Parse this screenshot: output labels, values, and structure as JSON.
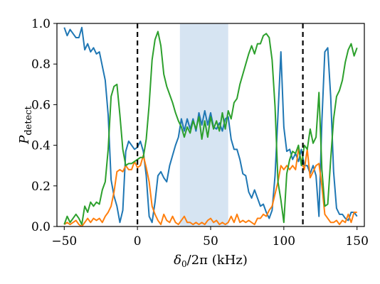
{
  "chart_data": {
    "type": "line",
    "xlabel": "δ0/2π (kHz)",
    "ylabel": "Pdetect",
    "xlim": [
      -55,
      155
    ],
    "ylim": [
      0,
      1
    ],
    "x_ticks": [
      -50,
      0,
      50,
      100,
      150
    ],
    "y_ticks": [
      0.0,
      0.2,
      0.4,
      0.6,
      0.8,
      1.0
    ],
    "x_tick_labels": [
      "−50",
      "0",
      "50",
      "100",
      "150"
    ],
    "y_tick_labels": [
      "0.0",
      "0.2",
      "0.4",
      "0.6",
      "0.8",
      "1.0"
    ],
    "grid": false,
    "shaded_region": {
      "x_start": 29,
      "x_end": 62,
      "color": "#d6e4f2"
    },
    "vertical_lines": [
      0,
      113
    ],
    "series": [
      {
        "color": "#1f77b4",
        "points": [
          [
            -50,
            0.98
          ],
          [
            -48,
            0.94
          ],
          [
            -46,
            0.97
          ],
          [
            -44,
            0.95
          ],
          [
            -42,
            0.93
          ],
          [
            -40,
            0.93
          ],
          [
            -38,
            0.98
          ],
          [
            -36,
            0.87
          ],
          [
            -34,
            0.9
          ],
          [
            -32,
            0.86
          ],
          [
            -30,
            0.88
          ],
          [
            -28,
            0.85
          ],
          [
            -26,
            0.86
          ],
          [
            -24,
            0.79
          ],
          [
            -22,
            0.72
          ],
          [
            -20,
            0.55
          ],
          [
            -18,
            0.23
          ],
          [
            -16,
            0.15
          ],
          [
            -14,
            0.1
          ],
          [
            -12,
            0.02
          ],
          [
            -10,
            0.08
          ],
          [
            -8,
            0.37
          ],
          [
            -6,
            0.42
          ],
          [
            -4,
            0.4
          ],
          [
            -2,
            0.38
          ],
          [
            0,
            0.39
          ],
          [
            2,
            0.42
          ],
          [
            4,
            0.37
          ],
          [
            6,
            0.25
          ],
          [
            8,
            0.05
          ],
          [
            10,
            0.02
          ],
          [
            12,
            0.12
          ],
          [
            14,
            0.25
          ],
          [
            16,
            0.27
          ],
          [
            18,
            0.24
          ],
          [
            20,
            0.22
          ],
          [
            22,
            0.3
          ],
          [
            24,
            0.35
          ],
          [
            26,
            0.4
          ],
          [
            28,
            0.44
          ],
          [
            30,
            0.53
          ],
          [
            32,
            0.47
          ],
          [
            34,
            0.53
          ],
          [
            36,
            0.48
          ],
          [
            38,
            0.53
          ],
          [
            40,
            0.47
          ],
          [
            42,
            0.56
          ],
          [
            44,
            0.5
          ],
          [
            46,
            0.57
          ],
          [
            48,
            0.5
          ],
          [
            50,
            0.56
          ],
          [
            52,
            0.49
          ],
          [
            54,
            0.48
          ],
          [
            56,
            0.51
          ],
          [
            58,
            0.47
          ],
          [
            60,
            0.53
          ],
          [
            62,
            0.54
          ],
          [
            64,
            0.43
          ],
          [
            66,
            0.38
          ],
          [
            68,
            0.38
          ],
          [
            70,
            0.33
          ],
          [
            72,
            0.26
          ],
          [
            74,
            0.25
          ],
          [
            76,
            0.17
          ],
          [
            78,
            0.14
          ],
          [
            80,
            0.18
          ],
          [
            82,
            0.14
          ],
          [
            84,
            0.1
          ],
          [
            86,
            0.11
          ],
          [
            88,
            0.07
          ],
          [
            90,
            0.04
          ],
          [
            92,
            0.08
          ],
          [
            94,
            0.25
          ],
          [
            96,
            0.55
          ],
          [
            98,
            0.86
          ],
          [
            100,
            0.49
          ],
          [
            102,
            0.37
          ],
          [
            104,
            0.38
          ],
          [
            106,
            0.33
          ],
          [
            108,
            0.36
          ],
          [
            110,
            0.32
          ],
          [
            112,
            0.38
          ],
          [
            114,
            0.3
          ],
          [
            116,
            0.3
          ],
          [
            118,
            0.26
          ],
          [
            120,
            0.3
          ],
          [
            122,
            0.25
          ],
          [
            124,
            0.05
          ],
          [
            126,
            0.52
          ],
          [
            128,
            0.86
          ],
          [
            130,
            0.88
          ],
          [
            132,
            0.64
          ],
          [
            134,
            0.27
          ],
          [
            136,
            0.09
          ],
          [
            138,
            0.06
          ],
          [
            140,
            0.06
          ],
          [
            142,
            0.04
          ],
          [
            144,
            0.03
          ],
          [
            146,
            0.07
          ],
          [
            148,
            0.07
          ],
          [
            150,
            0.05
          ]
        ]
      },
      {
        "color": "#ff7f0e",
        "points": [
          [
            -50,
            0.01
          ],
          [
            -48,
            0.02
          ],
          [
            -46,
            0.01
          ],
          [
            -44,
            0.02
          ],
          [
            -42,
            0.03
          ],
          [
            -40,
            0.01
          ],
          [
            -38,
            0.0
          ],
          [
            -36,
            0.02
          ],
          [
            -34,
            0.04
          ],
          [
            -32,
            0.02
          ],
          [
            -30,
            0.04
          ],
          [
            -28,
            0.03
          ],
          [
            -26,
            0.04
          ],
          [
            -24,
            0.02
          ],
          [
            -22,
            0.05
          ],
          [
            -20,
            0.07
          ],
          [
            -18,
            0.1
          ],
          [
            -16,
            0.17
          ],
          [
            -14,
            0.27
          ],
          [
            -12,
            0.28
          ],
          [
            -10,
            0.27
          ],
          [
            -8,
            0.3
          ],
          [
            -6,
            0.28
          ],
          [
            -4,
            0.28
          ],
          [
            -2,
            0.32
          ],
          [
            0,
            0.29
          ],
          [
            2,
            0.3
          ],
          [
            4,
            0.35
          ],
          [
            6,
            0.29
          ],
          [
            8,
            0.22
          ],
          [
            10,
            0.1
          ],
          [
            12,
            0.06
          ],
          [
            14,
            0.03
          ],
          [
            16,
            0.01
          ],
          [
            18,
            0.06
          ],
          [
            20,
            0.03
          ],
          [
            22,
            0.02
          ],
          [
            24,
            0.05
          ],
          [
            26,
            0.02
          ],
          [
            28,
            0.01
          ],
          [
            30,
            0.03
          ],
          [
            32,
            0.05
          ],
          [
            34,
            0.02
          ],
          [
            36,
            0.02
          ],
          [
            38,
            0.01
          ],
          [
            40,
            0.02
          ],
          [
            42,
            0.01
          ],
          [
            44,
            0.02
          ],
          [
            46,
            0.01
          ],
          [
            48,
            0.03
          ],
          [
            50,
            0.04
          ],
          [
            52,
            0.02
          ],
          [
            54,
            0.03
          ],
          [
            56,
            0.01
          ],
          [
            58,
            0.02
          ],
          [
            60,
            0.01
          ],
          [
            62,
            0.02
          ],
          [
            64,
            0.05
          ],
          [
            66,
            0.02
          ],
          [
            68,
            0.06
          ],
          [
            70,
            0.02
          ],
          [
            72,
            0.03
          ],
          [
            74,
            0.02
          ],
          [
            76,
            0.03
          ],
          [
            78,
            0.02
          ],
          [
            80,
            0.01
          ],
          [
            82,
            0.04
          ],
          [
            84,
            0.04
          ],
          [
            86,
            0.06
          ],
          [
            88,
            0.05
          ],
          [
            90,
            0.08
          ],
          [
            92,
            0.1
          ],
          [
            94,
            0.16
          ],
          [
            96,
            0.22
          ],
          [
            98,
            0.3
          ],
          [
            100,
            0.28
          ],
          [
            102,
            0.3
          ],
          [
            104,
            0.28
          ],
          [
            106,
            0.3
          ],
          [
            108,
            0.28
          ],
          [
            110,
            0.38
          ],
          [
            112,
            0.32
          ],
          [
            114,
            0.28
          ],
          [
            116,
            0.38
          ],
          [
            118,
            0.24
          ],
          [
            120,
            0.27
          ],
          [
            122,
            0.3
          ],
          [
            124,
            0.31
          ],
          [
            126,
            0.2
          ],
          [
            128,
            0.06
          ],
          [
            130,
            0.04
          ],
          [
            132,
            0.02
          ],
          [
            134,
            0.02
          ],
          [
            136,
            0.03
          ],
          [
            138,
            0.01
          ],
          [
            140,
            0.03
          ],
          [
            142,
            0.02
          ],
          [
            144,
            0.06
          ],
          [
            146,
            0.02
          ],
          [
            148,
            0.07
          ],
          [
            150,
            0.07
          ]
        ]
      },
      {
        "color": "#2ca02c",
        "points": [
          [
            -50,
            0.01
          ],
          [
            -48,
            0.05
          ],
          [
            -46,
            0.02
          ],
          [
            -44,
            0.04
          ],
          [
            -42,
            0.06
          ],
          [
            -40,
            0.04
          ],
          [
            -38,
            0.01
          ],
          [
            -36,
            0.1
          ],
          [
            -34,
            0.07
          ],
          [
            -32,
            0.12
          ],
          [
            -30,
            0.1
          ],
          [
            -28,
            0.12
          ],
          [
            -26,
            0.11
          ],
          [
            -24,
            0.18
          ],
          [
            -22,
            0.22
          ],
          [
            -20,
            0.38
          ],
          [
            -18,
            0.64
          ],
          [
            -16,
            0.69
          ],
          [
            -14,
            0.7
          ],
          [
            -12,
            0.55
          ],
          [
            -10,
            0.38
          ],
          [
            -8,
            0.3
          ],
          [
            -6,
            0.31
          ],
          [
            -4,
            0.31
          ],
          [
            -2,
            0.32
          ],
          [
            0,
            0.33
          ],
          [
            2,
            0.34
          ],
          [
            4,
            0.34
          ],
          [
            6,
            0.43
          ],
          [
            8,
            0.6
          ],
          [
            10,
            0.82
          ],
          [
            12,
            0.92
          ],
          [
            14,
            0.96
          ],
          [
            16,
            0.89
          ],
          [
            18,
            0.75
          ],
          [
            20,
            0.69
          ],
          [
            22,
            0.65
          ],
          [
            24,
            0.61
          ],
          [
            26,
            0.56
          ],
          [
            28,
            0.52
          ],
          [
            30,
            0.49
          ],
          [
            32,
            0.44
          ],
          [
            34,
            0.49
          ],
          [
            36,
            0.46
          ],
          [
            38,
            0.52
          ],
          [
            40,
            0.48
          ],
          [
            42,
            0.54
          ],
          [
            44,
            0.43
          ],
          [
            46,
            0.52
          ],
          [
            48,
            0.44
          ],
          [
            50,
            0.54
          ],
          [
            52,
            0.48
          ],
          [
            54,
            0.52
          ],
          [
            56,
            0.47
          ],
          [
            58,
            0.56
          ],
          [
            60,
            0.48
          ],
          [
            62,
            0.57
          ],
          [
            64,
            0.53
          ],
          [
            66,
            0.61
          ],
          [
            68,
            0.63
          ],
          [
            70,
            0.7
          ],
          [
            72,
            0.75
          ],
          [
            74,
            0.8
          ],
          [
            76,
            0.85
          ],
          [
            78,
            0.89
          ],
          [
            80,
            0.85
          ],
          [
            82,
            0.9
          ],
          [
            84,
            0.9
          ],
          [
            86,
            0.94
          ],
          [
            88,
            0.95
          ],
          [
            90,
            0.93
          ],
          [
            92,
            0.82
          ],
          [
            94,
            0.59
          ],
          [
            96,
            0.22
          ],
          [
            98,
            0.13
          ],
          [
            100,
            0.02
          ],
          [
            102,
            0.26
          ],
          [
            104,
            0.33
          ],
          [
            106,
            0.37
          ],
          [
            108,
            0.36
          ],
          [
            110,
            0.4
          ],
          [
            112,
            0.3
          ],
          [
            114,
            0.4
          ],
          [
            116,
            0.38
          ],
          [
            118,
            0.48
          ],
          [
            120,
            0.41
          ],
          [
            122,
            0.44
          ],
          [
            124,
            0.66
          ],
          [
            126,
            0.28
          ],
          [
            128,
            0.1
          ],
          [
            130,
            0.11
          ],
          [
            132,
            0.33
          ],
          [
            134,
            0.53
          ],
          [
            136,
            0.64
          ],
          [
            138,
            0.67
          ],
          [
            140,
            0.72
          ],
          [
            142,
            0.81
          ],
          [
            144,
            0.87
          ],
          [
            146,
            0.9
          ],
          [
            148,
            0.84
          ],
          [
            150,
            0.88
          ]
        ]
      }
    ]
  }
}
